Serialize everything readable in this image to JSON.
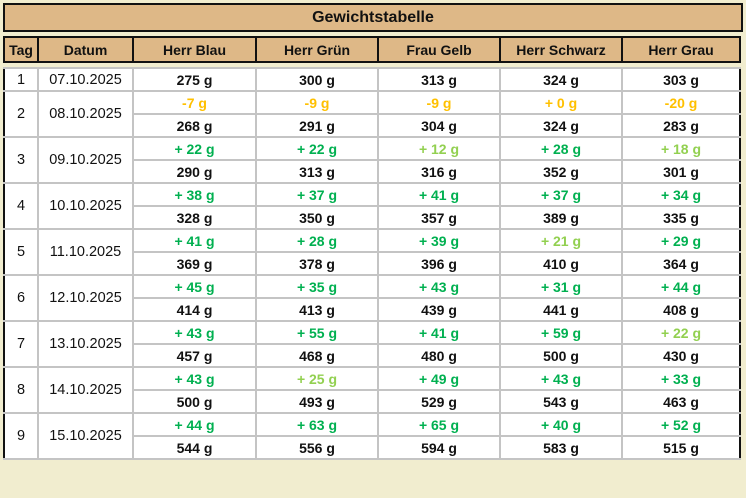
{
  "title": "Gewichtstabelle",
  "columns": [
    "Tag",
    "Datum",
    "Herr Blau",
    "Herr Grün",
    "Frau Gelb",
    "Herr Schwarz",
    "Herr Grau"
  ],
  "colors": {
    "dark": "#00B050",
    "light": "#92D050",
    "orange": "#FFC000",
    "header_bg": "#DEB887",
    "page_bg": "#F1EDCF"
  },
  "rows": [
    {
      "day": "1",
      "date": "07.10.2025",
      "deltas": [],
      "weights": [
        "275 g",
        "300 g",
        "313 g",
        "324 g",
        "303 g"
      ]
    },
    {
      "day": "2",
      "date": "08.10.2025",
      "deltas": [
        {
          "text": "-7 g",
          "tone": "orange"
        },
        {
          "text": "-9 g",
          "tone": "orange"
        },
        {
          "text": "-9 g",
          "tone": "orange"
        },
        {
          "text": "+ 0 g",
          "tone": "orange"
        },
        {
          "text": "-20 g",
          "tone": "orange"
        }
      ],
      "weights": [
        "268 g",
        "291 g",
        "304 g",
        "324 g",
        "283 g"
      ]
    },
    {
      "day": "3",
      "date": "09.10.2025",
      "deltas": [
        {
          "text": "+ 22 g",
          "tone": "dark"
        },
        {
          "text": "+ 22 g",
          "tone": "dark"
        },
        {
          "text": "+ 12 g",
          "tone": "light"
        },
        {
          "text": "+ 28 g",
          "tone": "dark"
        },
        {
          "text": "+ 18 g",
          "tone": "light"
        }
      ],
      "weights": [
        "290 g",
        "313 g",
        "316 g",
        "352 g",
        "301 g"
      ]
    },
    {
      "day": "4",
      "date": "10.10.2025",
      "deltas": [
        {
          "text": "+ 38 g",
          "tone": "dark"
        },
        {
          "text": "+ 37 g",
          "tone": "dark"
        },
        {
          "text": "+ 41 g",
          "tone": "dark"
        },
        {
          "text": "+ 37 g",
          "tone": "dark"
        },
        {
          "text": "+ 34 g",
          "tone": "dark"
        }
      ],
      "weights": [
        "328 g",
        "350 g",
        "357 g",
        "389 g",
        "335 g"
      ]
    },
    {
      "day": "5",
      "date": "11.10.2025",
      "deltas": [
        {
          "text": "+ 41 g",
          "tone": "dark"
        },
        {
          "text": "+ 28 g",
          "tone": "dark"
        },
        {
          "text": "+ 39 g",
          "tone": "dark"
        },
        {
          "text": "+ 21 g",
          "tone": "light"
        },
        {
          "text": "+ 29 g",
          "tone": "dark"
        }
      ],
      "weights": [
        "369 g",
        "378 g",
        "396 g",
        "410 g",
        "364 g"
      ]
    },
    {
      "day": "6",
      "date": "12.10.2025",
      "deltas": [
        {
          "text": "+ 45 g",
          "tone": "dark"
        },
        {
          "text": "+ 35 g",
          "tone": "dark"
        },
        {
          "text": "+ 43 g",
          "tone": "dark"
        },
        {
          "text": "+ 31 g",
          "tone": "dark"
        },
        {
          "text": "+ 44 g",
          "tone": "dark"
        }
      ],
      "weights": [
        "414 g",
        "413 g",
        "439 g",
        "441 g",
        "408 g"
      ]
    },
    {
      "day": "7",
      "date": "13.10.2025",
      "deltas": [
        {
          "text": "+ 43 g",
          "tone": "dark"
        },
        {
          "text": "+ 55 g",
          "tone": "dark"
        },
        {
          "text": "+ 41 g",
          "tone": "dark"
        },
        {
          "text": "+ 59 g",
          "tone": "dark"
        },
        {
          "text": "+ 22 g",
          "tone": "light"
        }
      ],
      "weights": [
        "457 g",
        "468 g",
        "480 g",
        "500 g",
        "430 g"
      ]
    },
    {
      "day": "8",
      "date": "14.10.2025",
      "deltas": [
        {
          "text": "+ 43 g",
          "tone": "dark"
        },
        {
          "text": "+ 25 g",
          "tone": "light"
        },
        {
          "text": "+ 49 g",
          "tone": "dark"
        },
        {
          "text": "+ 43 g",
          "tone": "dark"
        },
        {
          "text": "+ 33 g",
          "tone": "dark"
        }
      ],
      "weights": [
        "500 g",
        "493 g",
        "529 g",
        "543 g",
        "463 g"
      ]
    },
    {
      "day": "9",
      "date": "15.10.2025",
      "deltas": [
        {
          "text": "+ 44 g",
          "tone": "dark"
        },
        {
          "text": "+ 63 g",
          "tone": "dark"
        },
        {
          "text": "+ 65 g",
          "tone": "dark"
        },
        {
          "text": "+ 40 g",
          "tone": "dark"
        },
        {
          "text": "+ 52 g",
          "tone": "dark"
        }
      ],
      "weights": [
        "544 g",
        "556 g",
        "594 g",
        "583 g",
        "515 g"
      ]
    }
  ]
}
